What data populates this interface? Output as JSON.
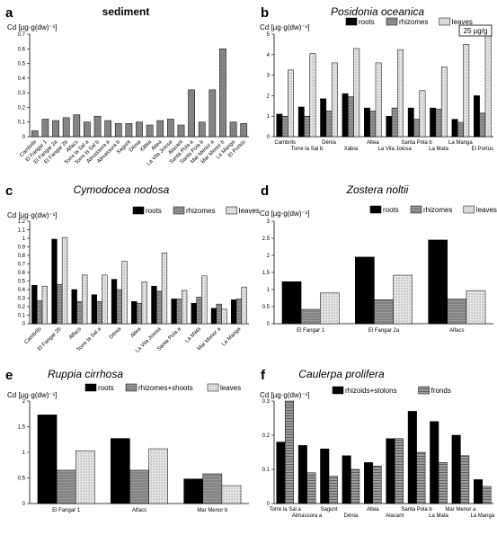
{
  "chart_data": [
    {
      "id": "a",
      "letter": "a",
      "title": "sediment",
      "ylabel": "Cd [µg·g(dw)⁻¹]",
      "type": "bar",
      "ylim": [
        0,
        0.7
      ],
      "ticks": [
        "0",
        "0.1",
        "0.2",
        "0.3",
        "0.4",
        "0.5",
        "0.6",
        "0.7"
      ],
      "tick_values": [
        0,
        0.1,
        0.2,
        0.3,
        0.4,
        0.5,
        0.6,
        0.7
      ],
      "categories": [
        "Cambrils",
        "El Fangar 1",
        "El Fangar 2a",
        "El Fangar 2b",
        "Alfacs",
        "Torre la Sal a",
        "Torre la Sal b",
        "Almassora a",
        "Almassora b",
        "Sagunt",
        "Dénia",
        "Xàbia",
        "Altea",
        "La Vila Joiosa",
        "Alacant",
        "Santa Pola a",
        "Santa Pola b",
        "Mar Menor a",
        "Mar Menor b",
        "La Manga",
        "El Portús"
      ],
      "series": [
        {
          "values": [
            0.04,
            0.12,
            0.11,
            0.13,
            0.15,
            0.1,
            0.14,
            0.11,
            0.09,
            0.09,
            0.1,
            0.08,
            0.11,
            0.12,
            0.08,
            0.32,
            0.1,
            0.32,
            0.6,
            0.1,
            0.09
          ]
        }
      ]
    },
    {
      "id": "b",
      "letter": "b",
      "title": "Posidonia oceanica",
      "ylabel": "Cd [µg·g(dw)⁻¹]",
      "type": "bar",
      "ylim": [
        0,
        5
      ],
      "ticks": [
        "0",
        "1",
        "2",
        "3",
        "4",
        "5"
      ],
      "tick_values": [
        0,
        1,
        2,
        3,
        4,
        5
      ],
      "categories": [
        "Cambrils",
        "Torre la Sal b",
        "Dénia",
        "Xàbia",
        "Altea",
        "La Vila Joiosa",
        "Santa Pola b",
        "La Mata",
        "La Manga",
        "El Portús"
      ],
      "series": [
        {
          "name": "roots",
          "values": [
            1.1,
            1.45,
            1.85,
            2.1,
            1.4,
            1.0,
            1.4,
            1.4,
            0.85,
            2.0
          ]
        },
        {
          "name": "rhizomes",
          "values": [
            1.0,
            1.0,
            1.25,
            1.95,
            1.25,
            1.4,
            0.85,
            1.35,
            0.7,
            1.15
          ]
        },
        {
          "name": "leaves",
          "values": [
            3.25,
            4.05,
            3.6,
            4.3,
            3.6,
            4.25,
            2.25,
            3.4,
            4.5,
            5.0
          ]
        }
      ],
      "annotation": "25 µg/g"
    },
    {
      "id": "c",
      "letter": "c",
      "title": "Cymodocea nodosa",
      "ylabel": "Cd [µg·g(dw)⁻¹]",
      "type": "bar",
      "ylim": [
        0,
        1.2
      ],
      "ticks": [
        "0",
        "0.1",
        "0.2",
        "0.3",
        "0.4",
        "0.5",
        "0.6",
        "0.7",
        "0.8",
        "0.9",
        "1",
        "1.1",
        "1.2"
      ],
      "tick_values": [
        0,
        0.1,
        0.2,
        0.3,
        0.4,
        0.5,
        0.6,
        0.7,
        0.8,
        0.9,
        1,
        1.1,
        1.2
      ],
      "categories": [
        "Cambrils",
        "El Fangar 2b",
        "Alfacs",
        "Torre la Sal a",
        "Dénia",
        "Altea",
        "La Vila Joiosa",
        "Santa Pola a",
        "La Mata",
        "Mar Menor a",
        "La Manga"
      ],
      "series": [
        {
          "name": "roots",
          "values": [
            0.45,
            0.99,
            0.4,
            0.34,
            0.52,
            0.26,
            0.44,
            0.29,
            0.24,
            0.18,
            0.28
          ]
        },
        {
          "name": "rhizomes",
          "values": [
            0.27,
            0.46,
            0.26,
            0.26,
            0.4,
            0.24,
            0.38,
            0.29,
            0.31,
            0.23,
            0.29
          ]
        },
        {
          "name": "leaves",
          "values": [
            0.44,
            1.01,
            0.57,
            0.57,
            0.73,
            0.49,
            0.83,
            0.39,
            0.56,
            0.17,
            0.43
          ]
        }
      ]
    },
    {
      "id": "d",
      "letter": "d",
      "title": "Zostera noltii",
      "ylabel": "Cd [µg·g(dw)⁻¹]",
      "type": "bar",
      "ylim": [
        0,
        3
      ],
      "ticks": [
        "0",
        "0.5",
        "1",
        "1.5",
        "2",
        "2.5",
        "3"
      ],
      "tick_values": [
        0,
        0.5,
        1,
        1.5,
        2,
        2.5,
        3
      ],
      "categories": [
        "El Fangar 1",
        "El Fangar 2a",
        "Alfacs"
      ],
      "series": [
        {
          "name": "roots",
          "values": [
            1.23,
            1.95,
            2.45
          ]
        },
        {
          "name": "rhizomes",
          "values": [
            0.42,
            0.7,
            0.72
          ]
        },
        {
          "name": "leaves",
          "values": [
            0.9,
            1.42,
            0.97
          ]
        }
      ]
    },
    {
      "id": "e",
      "letter": "e",
      "title": "Ruppia cirrhosa",
      "ylabel": "Cd [µg·g(dw)⁻¹]",
      "type": "bar",
      "ylim": [
        0,
        2
      ],
      "ticks": [
        "0",
        "0.5",
        "1",
        "1.5",
        "2"
      ],
      "tick_values": [
        0,
        0.5,
        1,
        1.5,
        2
      ],
      "categories": [
        "El Fangar 1",
        "Alfacs",
        "Mar Menor b"
      ],
      "series": [
        {
          "name": "roots",
          "values": [
            1.73,
            1.27,
            0.48
          ]
        },
        {
          "name": "rhizomes+shoots",
          "values": [
            0.65,
            0.65,
            0.58
          ]
        },
        {
          "name": "leaves",
          "values": [
            1.03,
            1.07,
            0.35
          ]
        }
      ]
    },
    {
      "id": "f",
      "letter": "f",
      "title": "Caulerpa prolifera",
      "ylabel": "Cd [µg·g(dw)⁻¹]",
      "type": "bar",
      "ylim": [
        0,
        0.3
      ],
      "ticks": [
        "0",
        "0.1",
        "0.2",
        "0.3"
      ],
      "tick_values": [
        0,
        0.1,
        0.2,
        0.3
      ],
      "categories": [
        "Torre la Sal a",
        "Almassora a",
        "Sagunt",
        "Dénia",
        "Altea",
        "Alacant",
        "Santa Pola b",
        "La Mata",
        "Mar Menor a",
        "La Manga"
      ],
      "series": [
        {
          "name": "rhizoids+stolons",
          "values": [
            0.18,
            0.17,
            0.16,
            0.14,
            0.12,
            0.19,
            0.27,
            0.24,
            0.2,
            0.07
          ]
        },
        {
          "name": "fronds",
          "values": [
            0.3,
            0.09,
            0.08,
            0.1,
            0.11,
            0.19,
            0.15,
            0.12,
            0.14,
            0.05
          ]
        }
      ]
    }
  ]
}
